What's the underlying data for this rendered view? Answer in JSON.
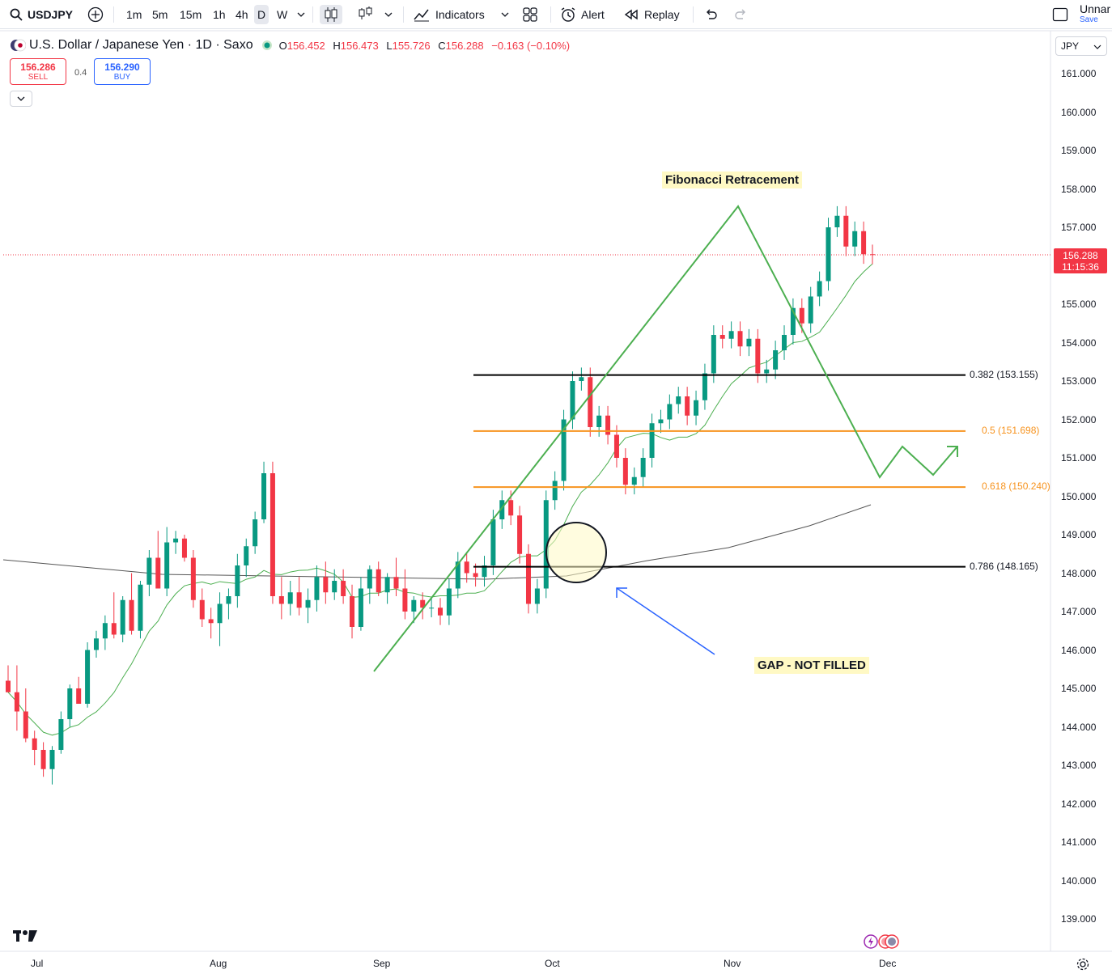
{
  "toolbar": {
    "symbol": "USDJPY",
    "timeframes": [
      "1m",
      "5m",
      "15m",
      "1h",
      "4h",
      "D",
      "W"
    ],
    "active_timeframe": "D",
    "indicators_label": "Indicators",
    "alert_label": "Alert",
    "replay_label": "Replay",
    "layout_name": "Unnar",
    "save_label": "Save"
  },
  "header": {
    "title": "U.S. Dollar / Japanese Yen · 1D · Saxo",
    "ohlc": [
      {
        "k": "O",
        "v": "156.452"
      },
      {
        "k": "H",
        "v": "156.473"
      },
      {
        "k": "L",
        "v": "155.726"
      },
      {
        "k": "C",
        "v": "156.288"
      }
    ],
    "change": "−0.163 (−0.10%)"
  },
  "trade": {
    "sell_price": "156.286",
    "sell_label": "SELL",
    "spread": "0.4",
    "buy_price": "156.290",
    "buy_label": "BUY"
  },
  "currency": "JPY",
  "price_axis": [
    "161.000",
    "160.000",
    "159.000",
    "158.000",
    "157.000",
    "155.000",
    "154.000",
    "153.000",
    "152.000",
    "151.000",
    "150.000",
    "149.000",
    "148.000",
    "147.000",
    "146.000",
    "145.000",
    "144.000",
    "143.000",
    "142.000",
    "141.000",
    "140.000",
    "139.000"
  ],
  "current_price": {
    "price": "156.288",
    "countdown": "11:15:36"
  },
  "time_axis": [
    "Jul",
    "Aug",
    "Sep",
    "Oct",
    "Nov",
    "Dec"
  ],
  "fib_levels": [
    {
      "label": "0.382 (153.155)",
      "price": 153.155,
      "color": "#000000"
    },
    {
      "label": "0.5 (151.698)",
      "price": 151.698,
      "color": "#f7931e"
    },
    {
      "label": "0.618 (150.240)",
      "price": 150.24,
      "color": "#f7931e"
    },
    {
      "label": "0.786 (148.165)",
      "price": 148.165,
      "color": "#000000"
    }
  ],
  "annotations": {
    "fib_title": "Fibonacci Retracement",
    "gap_note": "GAP - NOT FILLED"
  },
  "colors": {
    "up": "#089981",
    "down": "#f23645",
    "ma_short": "#4caf50",
    "ma_long": "#555555",
    "drawing": "#4caf50",
    "arrow": "#2962ff"
  },
  "chart_data": {
    "type": "candlestick",
    "ylim": [
      138.5,
      161.5
    ],
    "series_ohlc": [
      [
        145.2,
        145.6,
        144.9,
        144.9
      ],
      [
        144.9,
        145.6,
        143.9,
        144.4
      ],
      [
        144.4,
        145.0,
        143.6,
        143.7
      ],
      [
        143.7,
        143.9,
        143.0,
        143.4
      ],
      [
        143.4,
        143.6,
        142.7,
        142.9
      ],
      [
        142.9,
        143.5,
        142.5,
        143.4
      ],
      [
        143.4,
        144.4,
        143.3,
        144.2
      ],
      [
        144.2,
        145.1,
        144.0,
        145.0
      ],
      [
        145.0,
        145.3,
        144.6,
        144.6
      ],
      [
        144.6,
        146.2,
        144.5,
        146.0
      ],
      [
        146.0,
        146.5,
        145.8,
        146.3
      ],
      [
        146.3,
        146.9,
        146.0,
        146.7
      ],
      [
        146.7,
        147.5,
        146.3,
        146.4
      ],
      [
        146.4,
        147.4,
        146.2,
        147.3
      ],
      [
        147.3,
        148.0,
        146.4,
        146.5
      ],
      [
        146.5,
        147.8,
        146.3,
        147.7
      ],
      [
        147.7,
        148.6,
        147.4,
        148.4
      ],
      [
        148.4,
        149.1,
        147.6,
        147.6
      ],
      [
        147.6,
        149.2,
        147.4,
        148.8
      ],
      [
        148.8,
        149.1,
        148.5,
        148.9
      ],
      [
        148.9,
        149.0,
        148.3,
        148.4
      ],
      [
        148.4,
        148.6,
        147.1,
        147.3
      ],
      [
        147.3,
        147.6,
        146.6,
        146.8
      ],
      [
        146.8,
        147.1,
        146.3,
        146.7
      ],
      [
        146.7,
        147.5,
        146.1,
        147.2
      ],
      [
        147.2,
        147.6,
        146.8,
        147.4
      ],
      [
        147.4,
        148.5,
        147.1,
        148.2
      ],
      [
        148.2,
        148.9,
        147.9,
        148.7
      ],
      [
        148.7,
        149.6,
        148.5,
        149.4
      ],
      [
        149.4,
        150.9,
        149.3,
        150.6
      ],
      [
        150.6,
        150.9,
        147.2,
        147.4
      ],
      [
        147.4,
        147.9,
        146.8,
        147.2
      ],
      [
        147.2,
        147.8,
        146.9,
        147.5
      ],
      [
        147.5,
        147.9,
        146.9,
        147.1
      ],
      [
        147.1,
        147.6,
        146.7,
        147.3
      ],
      [
        147.3,
        148.2,
        147.0,
        147.9
      ],
      [
        147.9,
        148.3,
        147.2,
        147.5
      ],
      [
        147.5,
        148.1,
        147.3,
        147.8
      ],
      [
        147.8,
        148.1,
        147.2,
        147.4
      ],
      [
        147.4,
        147.7,
        146.3,
        146.6
      ],
      [
        146.6,
        147.9,
        146.5,
        147.6
      ],
      [
        147.6,
        148.2,
        147.2,
        148.1
      ],
      [
        148.1,
        148.3,
        147.4,
        147.5
      ],
      [
        147.5,
        148.0,
        147.2,
        147.9
      ],
      [
        147.9,
        148.4,
        147.4,
        147.6
      ],
      [
        147.6,
        148.1,
        146.8,
        147.0
      ],
      [
        147.0,
        147.4,
        146.7,
        147.3
      ],
      [
        147.3,
        147.5,
        146.8,
        147.1
      ]
    ],
    "title": ""
  }
}
